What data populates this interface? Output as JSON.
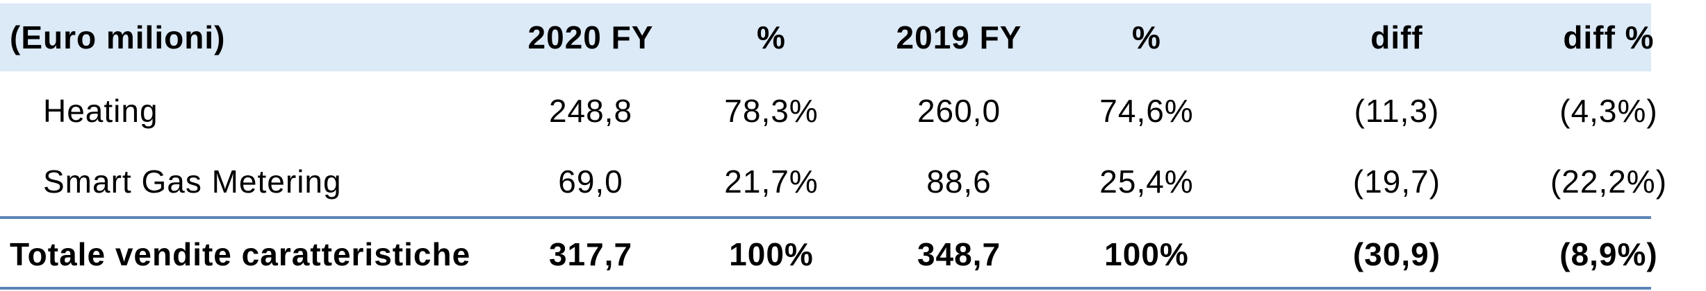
{
  "table": {
    "header": {
      "label": "(Euro milioni)",
      "col_2020": "2020 FY",
      "col_pct_2020": "%",
      "col_2019": "2019 FY",
      "col_pct_2019": "%",
      "col_diff": "diff",
      "col_diff_pct": "diff %"
    },
    "rows": [
      {
        "label": "Heating",
        "v2020": "248,8",
        "pct2020": "78,3%",
        "v2019": "260,0",
        "pct2019": "74,6%",
        "diff": "(11,3)",
        "diff_pct": "(4,3%)"
      },
      {
        "label": "Smart Gas Metering",
        "v2020": "69,0",
        "pct2020": "21,7%",
        "v2019": "88,6",
        "pct2019": "25,4%",
        "diff": "(19,7)",
        "diff_pct": "(22,2%)"
      }
    ],
    "total": {
      "label": "Totale vendite caratteristiche",
      "v2020": "317,7",
      "pct2020": "100%",
      "v2019": "348,7",
      "pct2019": "100%",
      "diff": "(30,9)",
      "diff_pct": "(8,9%)"
    }
  },
  "colors": {
    "header_background": "#dce9f6",
    "rule": "#5b84b8"
  }
}
